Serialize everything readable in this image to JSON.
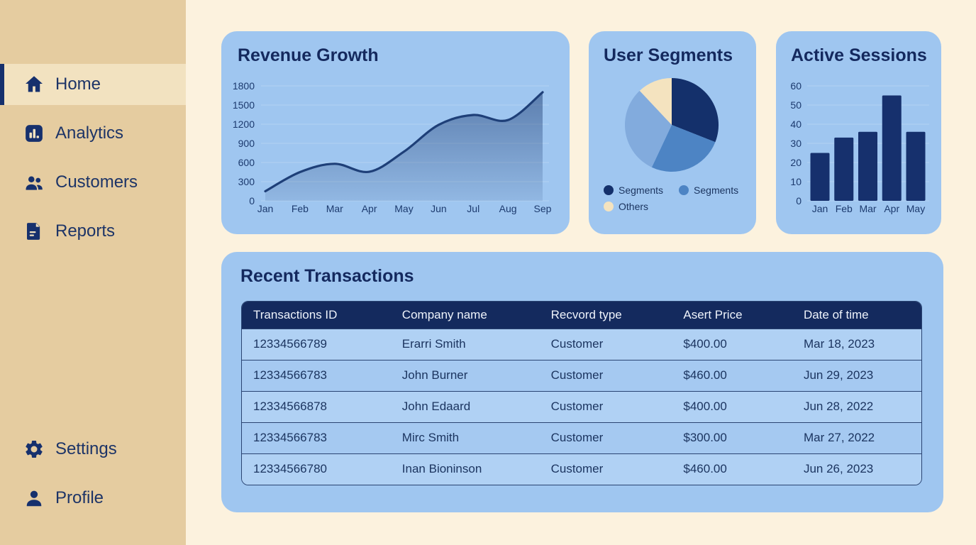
{
  "colors": {
    "background": "#fcf2de",
    "sidebar": "#e5cca0",
    "sidebar_active": "#f2e2c0",
    "navy": "#16306d",
    "card_blue": "#9fc6f0",
    "table_header": "#142a5e",
    "row_light": "#b0d1f4",
    "row_dark": "#a5c9f1"
  },
  "sidebar": {
    "items": [
      {
        "label": "Home",
        "icon": "home-icon",
        "active": true
      },
      {
        "label": "Analytics",
        "icon": "analytics-icon",
        "active": false
      },
      {
        "label": "Customers",
        "icon": "customers-icon",
        "active": false
      },
      {
        "label": "Reports",
        "icon": "reports-icon",
        "active": false
      }
    ],
    "footer_items": [
      {
        "label": "Settings",
        "icon": "settings-icon",
        "active": false
      },
      {
        "label": "Profile",
        "icon": "profile-icon",
        "active": false
      }
    ]
  },
  "chart_data": [
    {
      "type": "line",
      "title": "Revenue Growth",
      "x": [
        "Jan",
        "Feb",
        "Mar",
        "Apr",
        "May",
        "Jun",
        "Jul",
        "Aug",
        "Sep"
      ],
      "values": [
        150,
        450,
        580,
        455,
        770,
        1190,
        1345,
        1265,
        1700
      ],
      "yticks": [
        0,
        300,
        600,
        900,
        1200,
        1500,
        1800
      ],
      "ylim": [
        0,
        1800
      ],
      "grid": true,
      "line_color": "#1e3f78",
      "area_fill": "navy-gradient"
    },
    {
      "type": "pie",
      "title": "User Segments",
      "slices": [
        {
          "label": "Segments",
          "value": 31,
          "color": "#14306b"
        },
        {
          "label": "Segments",
          "value": 26,
          "color": "#4d84c4"
        },
        {
          "label": "",
          "value": 31,
          "color": "#82abdd"
        },
        {
          "label": "Others",
          "value": 12,
          "color": "#f4e3bf"
        }
      ],
      "legend": [
        {
          "label": "Segments",
          "color": "#14306b"
        },
        {
          "label": "Segments",
          "color": "#4d84c4"
        },
        {
          "label": "Others",
          "color": "#f4e3bf"
        }
      ],
      "legend_position": "bottom"
    },
    {
      "type": "bar",
      "title": "Active Sessions",
      "categories": [
        "Jan",
        "Feb",
        "Mar",
        "Apr",
        "May"
      ],
      "values": [
        25,
        33,
        36,
        55,
        36
      ],
      "yticks": [
        0,
        10,
        20,
        30,
        40,
        50,
        60
      ],
      "ylim": [
        0,
        60
      ],
      "grid": true,
      "bar_color": "#16306d"
    }
  ],
  "transactions": {
    "title": "Recent Transactions",
    "columns": [
      "Transactions ID",
      "Company name",
      "Recvord type",
      "Asert Price",
      "Date of time"
    ],
    "rows": [
      [
        "12334566789",
        "Erarri Smith",
        "Customer",
        "$400.00",
        "Mar 18, 2023"
      ],
      [
        "12334566783",
        "John Burner",
        "Customer",
        "$460.00",
        "Jun 29, 2023"
      ],
      [
        "12334566878",
        "John Edaard",
        "Customer",
        "$400.00",
        "Jun 28, 2022"
      ],
      [
        "12334566783",
        "Mirc Smith",
        "Customer",
        "$300.00",
        "Mar 27, 2022"
      ],
      [
        "12334566780",
        "Inan Bioninson",
        "Customer",
        "$460.00",
        "Jun 26, 2023"
      ]
    ]
  }
}
